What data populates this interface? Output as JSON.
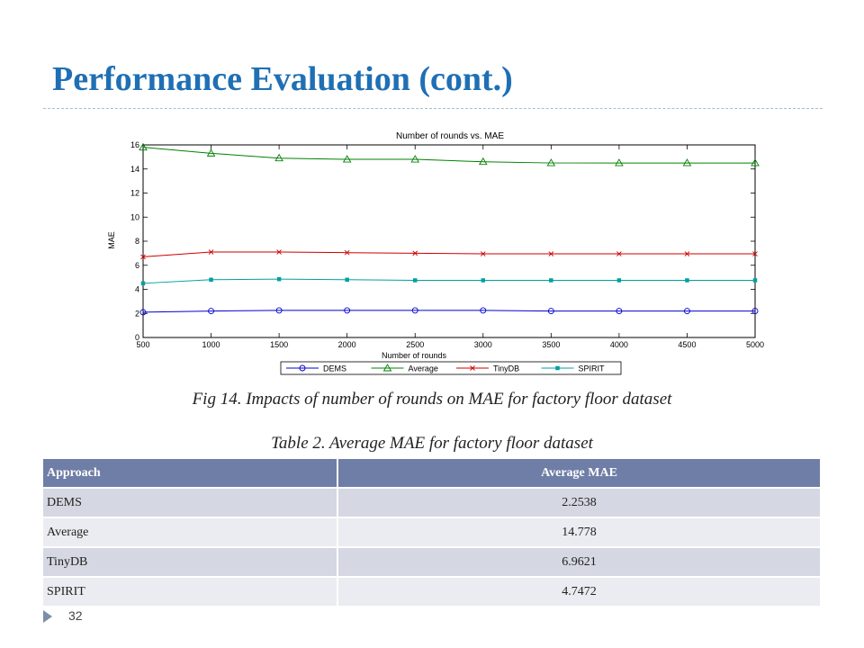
{
  "slide": {
    "title": "Performance Evaluation (cont.)",
    "page_number": "32",
    "colors": {
      "title": "#1f6fb4",
      "table_header": "#6f7ea6"
    }
  },
  "figure": {
    "caption": "Fig 14. Impacts of number of rounds on MAE for factory floor dataset"
  },
  "chart_data": {
    "type": "line",
    "title": "Number of rounds vs. MAE",
    "xlabel": "Number of rounds",
    "ylabel": "MAE",
    "xlim": [
      500,
      5000
    ],
    "ylim": [
      0,
      16
    ],
    "x_ticks": [
      "500",
      "1000",
      "1500",
      "2000",
      "2500",
      "3000",
      "3500",
      "4000",
      "4500",
      "5000"
    ],
    "y_ticks": [
      "0",
      "2",
      "4",
      "6",
      "8",
      "10",
      "12",
      "14",
      "16"
    ],
    "grid": false,
    "legend_position": "bottom",
    "x": [
      500,
      1000,
      1500,
      2000,
      2500,
      3000,
      3500,
      4000,
      4500,
      5000
    ],
    "series": [
      {
        "name": "DEMS",
        "color": "#0000cc",
        "marker": "circle",
        "values": [
          2.1,
          2.2,
          2.25,
          2.25,
          2.25,
          2.25,
          2.2,
          2.2,
          2.2,
          2.2
        ]
      },
      {
        "name": "Average",
        "color": "#008000",
        "marker": "triangle",
        "values": [
          15.8,
          15.3,
          14.9,
          14.8,
          14.8,
          14.6,
          14.5,
          14.5,
          14.5,
          14.5
        ]
      },
      {
        "name": "TinyDB",
        "color": "#cc0000",
        "marker": "x",
        "values": [
          6.7,
          7.1,
          7.1,
          7.05,
          7.0,
          6.95,
          6.95,
          6.95,
          6.95,
          6.95
        ]
      },
      {
        "name": "SPIRIT",
        "color": "#00a0a0",
        "marker": "square",
        "values": [
          4.5,
          4.8,
          4.85,
          4.8,
          4.75,
          4.75,
          4.75,
          4.75,
          4.75,
          4.75
        ]
      }
    ]
  },
  "table": {
    "caption": "Table 2. Average MAE for factory floor dataset",
    "headers": [
      "Approach",
      "Average MAE"
    ],
    "rows": [
      [
        "DEMS",
        "2.2538"
      ],
      [
        "Average",
        "14.778"
      ],
      [
        "TinyDB",
        "6.9621"
      ],
      [
        "SPIRIT",
        "4.7472"
      ]
    ]
  }
}
